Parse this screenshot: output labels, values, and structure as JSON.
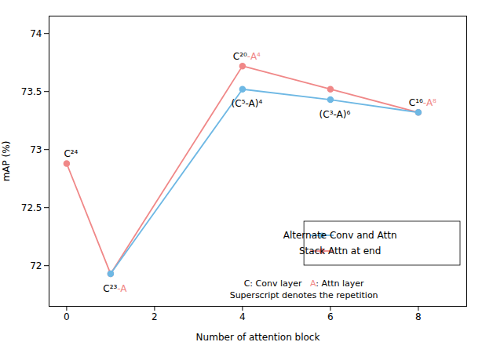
{
  "chart_data": {
    "type": "line",
    "xlabel": "Number of attention block",
    "ylabel": "mAP (%)",
    "series": [
      {
        "name": "Stack Attn at end",
        "color": "#F08888",
        "marker": "o",
        "x": [
          0,
          1,
          4,
          6,
          8
        ],
        "values": [
          72.88,
          71.93,
          73.72,
          73.52,
          73.32
        ]
      },
      {
        "name": "Alternate Conv and Attn",
        "color": "#6EB8E4",
        "marker": "o",
        "x": [
          1,
          4,
          6,
          8
        ],
        "values": [
          71.93,
          73.52,
          73.43,
          73.32
        ]
      }
    ],
    "xlim": [
      -0.4,
      9.1
    ],
    "ylim": [
      71.65,
      74.15
    ],
    "xticks": [
      0,
      2,
      4,
      6,
      8
    ],
    "yticks": [
      72,
      72.5,
      73,
      73.5,
      74
    ],
    "grid": false,
    "legend": "lower right",
    "annotations": [
      {
        "x": 0,
        "y": 72.88,
        "position": "above",
        "parts": [
          {
            "text": "C²⁴"
          }
        ]
      },
      {
        "x": 1,
        "y": 71.93,
        "position": "below",
        "parts": [
          {
            "text": "C²³"
          },
          {
            "text": "-A",
            "color": "#F08888"
          }
        ]
      },
      {
        "x": 4,
        "y": 73.72,
        "position": "above",
        "parts": [
          {
            "text": "C²⁰"
          },
          {
            "text": "-A⁴",
            "color": "#F08888"
          }
        ]
      },
      {
        "x": 8,
        "y": 73.32,
        "position": "above",
        "parts": [
          {
            "text": "C¹⁶"
          },
          {
            "text": "-A⁸",
            "color": "#F08888"
          }
        ]
      },
      {
        "x": 4,
        "y": 73.52,
        "position": "below",
        "parts": [
          {
            "text": "(C⁵-A)⁴"
          }
        ]
      },
      {
        "x": 6,
        "y": 73.43,
        "position": "below",
        "parts": [
          {
            "text": "(C³-A)⁶"
          }
        ]
      }
    ],
    "note": [
      [
        {
          "text": "C: Conv layer   "
        },
        {
          "text": "A",
          "color": "#F08888"
        },
        {
          "text": ": Attn layer"
        }
      ],
      [
        {
          "text": "Superscript denotes the repetition"
        }
      ]
    ]
  }
}
